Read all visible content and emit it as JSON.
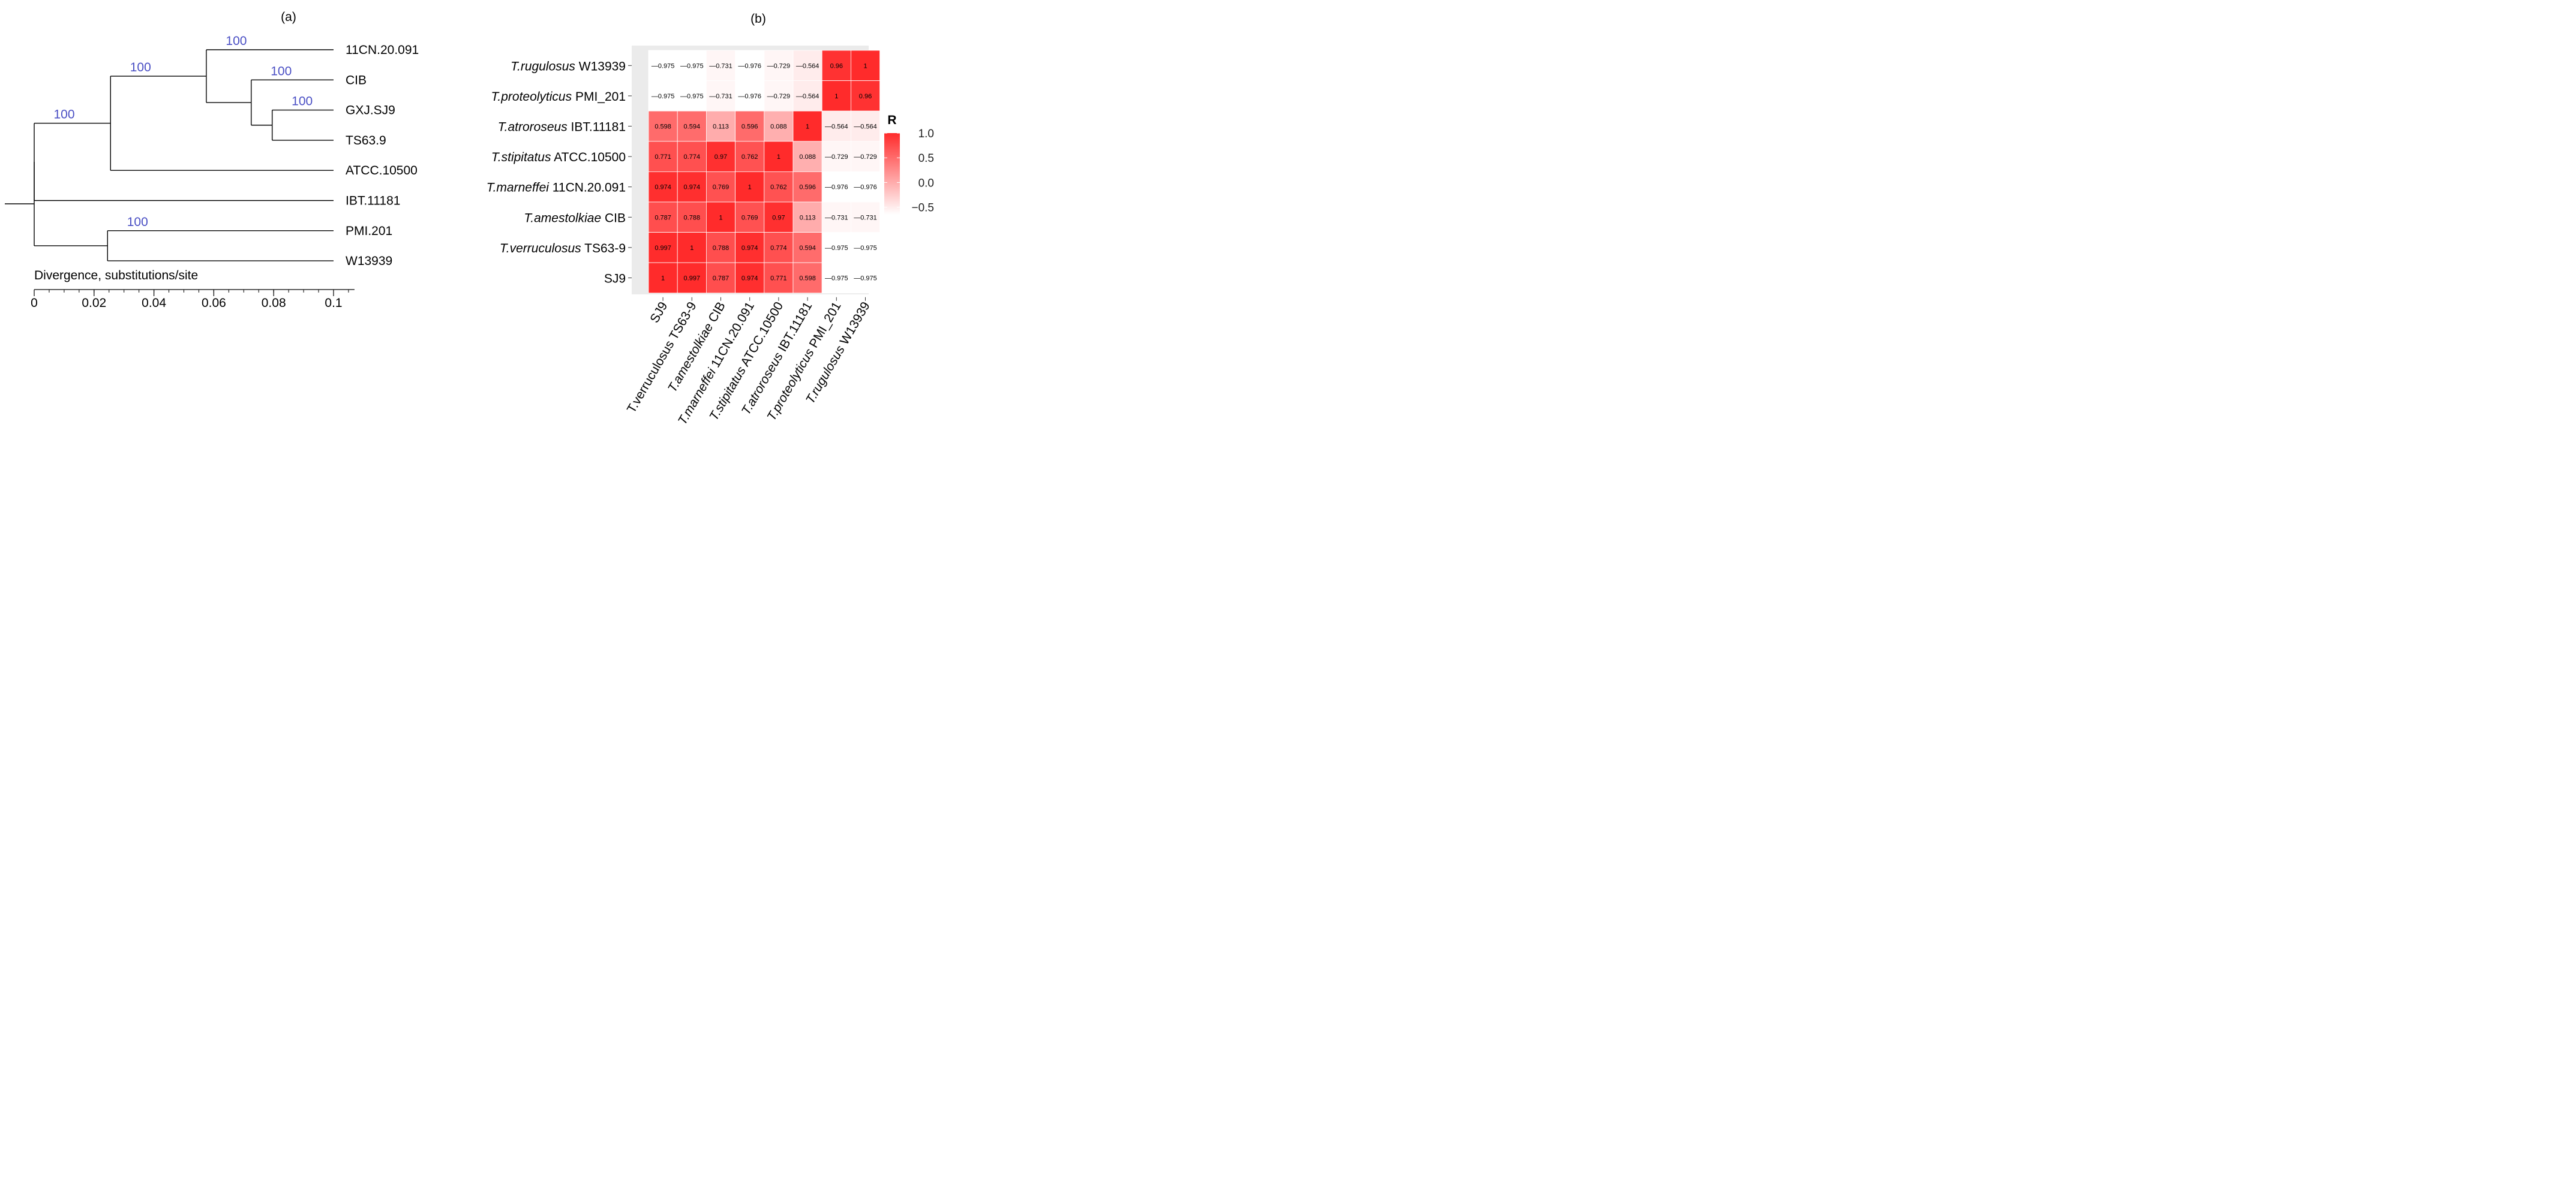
{
  "panel_a": {
    "label": "(a)",
    "axis_title": "Divergence, substitutions/site",
    "axis": {
      "min": 0,
      "max": 0.107,
      "major_ticks": [
        0,
        0.02,
        0.04,
        0.06,
        0.08,
        0.1
      ],
      "tick_labels": [
        "0",
        "0.02",
        "0.04",
        "0.06",
        "0.08",
        "0.1"
      ],
      "minor_step": 0.005
    },
    "leaves": [
      "11CN.20.091",
      "CIB",
      "GXJ.SJ9",
      "TS63.9",
      "ATCC.10500",
      "IBT.11181",
      "PMI.201",
      "W13939"
    ],
    "tip_depth": {
      "11CN.20.091": 0.1,
      "CIB": 0.1,
      "GXJ.SJ9": 0.1,
      "TS63.9": 0.1,
      "ATCC.10500": 0.1,
      "IBT.11181": 0.1,
      "PMI.201": 0.1,
      "W13939": 0.1
    },
    "nodes": [
      {
        "id": "root",
        "depth": 0.0,
        "children": [
          "n1",
          "n6"
        ]
      },
      {
        "id": "n1",
        "depth": 0.0,
        "bootstrap": "100",
        "children": [
          "n2",
          "IBT.11181"
        ]
      },
      {
        "id": "n2",
        "depth": 0.0255,
        "bootstrap": "100",
        "children": [
          "n3",
          "ATCC.10500"
        ]
      },
      {
        "id": "n3",
        "depth": 0.0575,
        "bootstrap": "100",
        "children": [
          "11CN.20.091",
          "n4"
        ]
      },
      {
        "id": "n4",
        "depth": 0.0725,
        "bootstrap": "100",
        "children": [
          "CIB",
          "n5"
        ]
      },
      {
        "id": "n5",
        "depth": 0.0795,
        "bootstrap": "100",
        "children": [
          "GXJ.SJ9",
          "TS63.9"
        ]
      },
      {
        "id": "n6",
        "depth": 0.0245,
        "bootstrap": "100",
        "children": [
          "PMI.201",
          "W13939"
        ]
      }
    ],
    "colors": {
      "bootstrap": "#4a4fc4",
      "line": "#000000"
    }
  },
  "chart_data": {
    "type": "heatmap",
    "panel_label": "(b)",
    "legend_title": "R",
    "legend_ticks": [
      1.0,
      0.5,
      0.0,
      -0.5
    ],
    "legend_tick_labels": [
      "1.0",
      "0.5",
      "0.0",
      "−0.5"
    ],
    "color_range": [
      -1.0,
      1.0
    ],
    "colors": {
      "high": "#ff2b2b",
      "low": "#ffffff",
      "grid": "#ebebeb"
    },
    "row_labels_top_to_bottom": [
      {
        "italic": "T.rugulosus",
        "plain": " W13939"
      },
      {
        "italic": "T.proteolyticus",
        "plain": " PMI_201"
      },
      {
        "italic": "T.atroroseus",
        "plain": " IBT.11181"
      },
      {
        "italic": "T.stipitatus",
        "plain": " ATCC.10500"
      },
      {
        "italic": "T.marneffei",
        "plain": " 11CN.20.091"
      },
      {
        "italic": "T.amestolkiae",
        "plain": " CIB"
      },
      {
        "italic": "T.verruculosus",
        "plain": " TS63-9"
      },
      {
        "italic": "",
        "plain": "SJ9"
      }
    ],
    "column_labels": [
      {
        "italic": "",
        "plain": "SJ9"
      },
      {
        "italic": "",
        "plain": "T.verruculosus TS63-9"
      },
      {
        "italic": "T.amestolkiae",
        "plain": " CIB"
      },
      {
        "italic": "T.marneffei",
        "plain": " 11CN.20.091"
      },
      {
        "italic": "T.stipitatus",
        "plain": " ATCC.10500"
      },
      {
        "italic": "T.atroroseus",
        "plain": " IBT.11181"
      },
      {
        "italic": "T.proteolyticus",
        "plain": " PMI_201"
      },
      {
        "italic": "T.rugulosus",
        "plain": " W13939"
      }
    ],
    "values": [
      [
        -0.975,
        -0.975,
        -0.731,
        -0.976,
        -0.729,
        -0.564,
        0.96,
        1
      ],
      [
        -0.975,
        -0.975,
        -0.731,
        -0.976,
        -0.729,
        -0.564,
        1,
        0.96
      ],
      [
        0.598,
        0.594,
        0.113,
        0.596,
        0.088,
        1,
        -0.564,
        -0.564
      ],
      [
        0.771,
        0.774,
        0.97,
        0.762,
        1,
        0.088,
        -0.729,
        -0.729
      ],
      [
        0.974,
        0.974,
        0.769,
        1,
        0.762,
        0.596,
        -0.976,
        -0.976
      ],
      [
        0.787,
        0.788,
        1,
        0.769,
        0.97,
        0.113,
        -0.731,
        -0.731
      ],
      [
        0.997,
        1,
        0.788,
        0.974,
        0.774,
        0.594,
        -0.975,
        -0.975
      ],
      [
        1,
        0.997,
        0.787,
        0.974,
        0.771,
        0.598,
        -0.975,
        -0.975
      ]
    ]
  }
}
